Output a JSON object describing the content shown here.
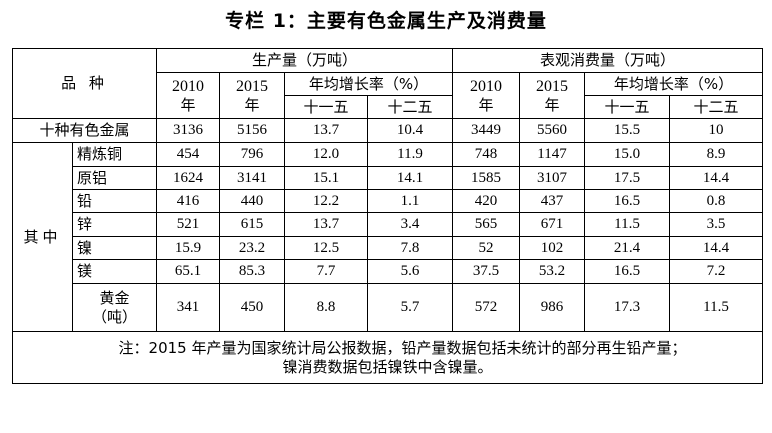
{
  "title": "专栏 1：主要有色金属生产及消费量",
  "header": {
    "variety": "品    种",
    "production": "生产量（万吨）",
    "consumption": "表观消费量（万吨）",
    "y2010": "2010",
    "y2015": "2015",
    "year_unit": "年",
    "growth_rate": "年均增长率（%）",
    "fyp12": "十一五",
    "fyp13": "十二五"
  },
  "total_row": {
    "label": "十种有色金属",
    "values": [
      "3136",
      "5156",
      "13.7",
      "10.4",
      "3449",
      "5560",
      "15.5",
      "10"
    ]
  },
  "group_label": "其中",
  "rows": [
    {
      "label": "精炼铜",
      "values": [
        "454",
        "796",
        "12.0",
        "11.9",
        "748",
        "1147",
        "15.0",
        "8.9"
      ]
    },
    {
      "label": "原铝",
      "values": [
        "1624",
        "3141",
        "15.1",
        "14.1",
        "1585",
        "3107",
        "17.5",
        "14.4"
      ]
    },
    {
      "label": "铅",
      "values": [
        "416",
        "440",
        "12.2",
        "1.1",
        "420",
        "437",
        "16.5",
        "0.8"
      ]
    },
    {
      "label": "锌",
      "values": [
        "521",
        "615",
        "13.7",
        "3.4",
        "565",
        "671",
        "11.5",
        "3.5"
      ]
    },
    {
      "label": "镍",
      "values": [
        "15.9",
        "23.2",
        "12.5",
        "7.8",
        "52",
        "102",
        "21.4",
        "14.4"
      ]
    },
    {
      "label": "镁",
      "values": [
        "65.1",
        "85.3",
        "7.7",
        "5.6",
        "37.5",
        "53.2",
        "16.5",
        "7.2"
      ]
    },
    {
      "label": "黄金",
      "label2": "（吨）",
      "values": [
        "341",
        "450",
        "8.8",
        "5.7",
        "572",
        "986",
        "17.3",
        "11.5"
      ]
    }
  ],
  "note_line1": "注：2015 年产量为国家统计局公报数据，铅产量数据包括未统计的部分再生铅产量；",
  "note_line2": "镍消费数据包括镍铁中含镍量。"
}
